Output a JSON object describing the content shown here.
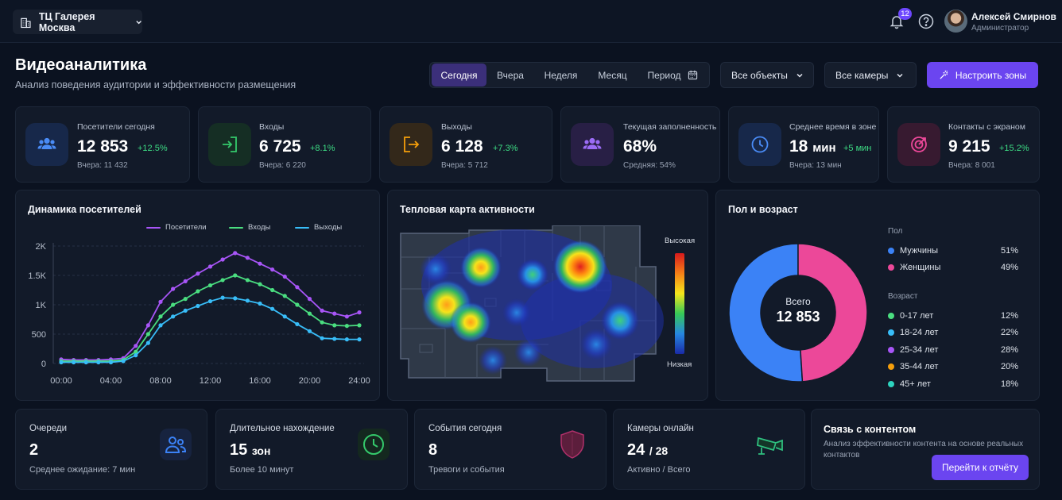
{
  "topbar": {
    "org": "ТЦ Галерея Москва",
    "notifications": "12",
    "user": {
      "name": "Алексей Смирнов",
      "role": "Администратор"
    }
  },
  "header": {
    "title": "Видеоаналитика",
    "subtitle": "Анализ поведения аудитории и эффективности размещения",
    "periods": [
      "Сегодня",
      "Вчера",
      "Неделя",
      "Месяц",
      "Период"
    ],
    "active_period": "Сегодня",
    "objects": "Все объекты",
    "cameras": "Все камеры",
    "cta": "Настроить зоны"
  },
  "stats": [
    {
      "label": "Посетители сегодня",
      "value": "12 853",
      "delta": "+12.5%",
      "prev": "Вчера: 11 432",
      "icon": "users-icon",
      "color": "#3b82f6"
    },
    {
      "label": "Входы",
      "value": "6 725",
      "delta": "+8.1%",
      "prev": "Вчера: 6 220",
      "icon": "enter-icon",
      "color": "#22c55e"
    },
    {
      "label": "Выходы",
      "value": "6 128",
      "delta": "+7.3%",
      "prev": "Вчера: 5 712",
      "icon": "exit-icon",
      "color": "#f59e0b"
    },
    {
      "label": "Текущая заполненность",
      "value": "68%",
      "delta": "",
      "prev": "Средняя: 54%",
      "icon": "group-icon",
      "color": "#8b5cf6"
    },
    {
      "label": "Среднее время в зоне",
      "value": "18",
      "unit": "мин",
      "delta": "+5 мин",
      "prev": "Вчера: 13 мин",
      "icon": "clock-icon",
      "color": "#3b82f6"
    },
    {
      "label": "Контакты с экраном",
      "value": "9 215",
      "delta": "+15.2%",
      "prev": "Вчера: 8 001",
      "icon": "target-icon",
      "color": "#ec4899"
    }
  ],
  "panels": {
    "dynamics": "Динамика посетителей",
    "heatmap": {
      "title": "Тепловая карта активности",
      "high": "Высокая",
      "low": "Низкая"
    },
    "gender": {
      "title": "Пол и возраст",
      "center_label": "Всего",
      "center_value": "12 853",
      "gender_label": "Пол",
      "age_label": "Возраст"
    }
  },
  "chart_data": [
    {
      "type": "line",
      "x": [
        "00:00",
        "01:00",
        "02:00",
        "03:00",
        "04:00",
        "05:00",
        "06:00",
        "07:00",
        "08:00",
        "09:00",
        "10:00",
        "11:00",
        "12:00",
        "13:00",
        "14:00",
        "15:00",
        "16:00",
        "17:00",
        "18:00",
        "19:00",
        "20:00",
        "21:00",
        "22:00",
        "23:00",
        "24:00"
      ],
      "x_ticks": [
        "00:00",
        "04:00",
        "08:00",
        "12:00",
        "16:00",
        "20:00",
        "24:00"
      ],
      "y_ticks": [
        "0",
        "500",
        "1K",
        "1.5K",
        "2K"
      ],
      "ylim": [
        0,
        2000
      ],
      "grid": true,
      "legend": "top",
      "series": [
        {
          "name": "Посетители",
          "color": "#a855f7",
          "values": [
            70,
            60,
            60,
            60,
            70,
            90,
            300,
            650,
            1050,
            1270,
            1400,
            1530,
            1650,
            1770,
            1880,
            1800,
            1700,
            1600,
            1480,
            1300,
            1100,
            900,
            850,
            800,
            870
          ]
        },
        {
          "name": "Входы",
          "color": "#4ade80",
          "values": [
            40,
            40,
            40,
            40,
            40,
            60,
            200,
            500,
            800,
            1000,
            1100,
            1230,
            1330,
            1420,
            1500,
            1420,
            1350,
            1250,
            1150,
            1000,
            850,
            700,
            650,
            640,
            650
          ]
        },
        {
          "name": "Выходы",
          "color": "#38bdf8",
          "values": [
            20,
            20,
            20,
            20,
            20,
            40,
            140,
            350,
            650,
            800,
            900,
            980,
            1060,
            1120,
            1110,
            1070,
            1020,
            930,
            800,
            670,
            550,
            430,
            420,
            410,
            410
          ]
        }
      ]
    },
    {
      "type": "pie",
      "categories": [
        "Мужчины",
        "Женщины"
      ],
      "values": [
        51,
        49
      ],
      "colors": [
        "#3b82f6",
        "#ec4899"
      ]
    }
  ],
  "gender_rows": [
    {
      "label": "Мужчины",
      "pct": "51%",
      "color": "#3b82f6"
    },
    {
      "label": "Женщины",
      "pct": "49%",
      "color": "#ec4899"
    }
  ],
  "age_rows": [
    {
      "label": "0-17 лет",
      "pct": "12%",
      "color": "#4ade80"
    },
    {
      "label": "18-24 лет",
      "pct": "22%",
      "color": "#38bdf8"
    },
    {
      "label": "25-34 лет",
      "pct": "28%",
      "color": "#a855f7"
    },
    {
      "label": "35-44 лет",
      "pct": "20%",
      "color": "#f59e0b"
    },
    {
      "label": "45+ лет",
      "pct": "18%",
      "color": "#2dd4bf"
    }
  ],
  "bottom": {
    "queues": {
      "label": "Очереди",
      "value": "2",
      "sub": "Среднее ожидание: 7 мин"
    },
    "long_stay": {
      "label": "Длительное нахождение",
      "value": "15",
      "unit": "зон",
      "sub": "Более 10 минут"
    },
    "events": {
      "label": "События сегодня",
      "value": "8",
      "sub": "Тревоги и события"
    },
    "cameras": {
      "label": "Камеры онлайн",
      "value": "24",
      "total": "/ 28",
      "sub": "Активно / Всего"
    },
    "content": {
      "title": "Связь с контентом",
      "desc": "Анализ эффективности контента на основе реальных контактов",
      "button": "Перейти к отчёту"
    }
  }
}
